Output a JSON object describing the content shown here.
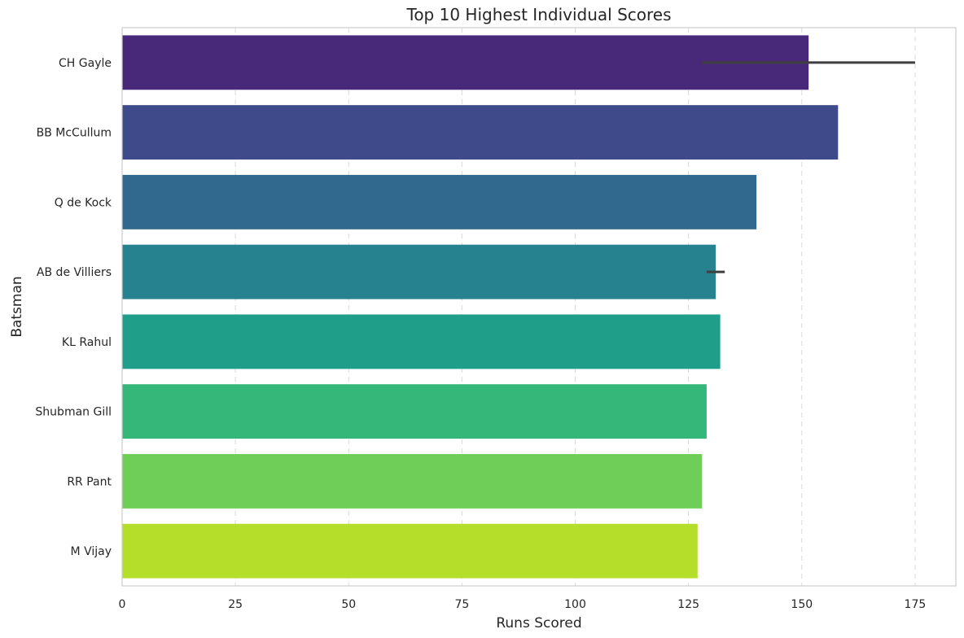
{
  "chart_data": {
    "type": "bar",
    "orientation": "horizontal",
    "title": "Top 10 Highest Individual Scores",
    "xlabel": "Runs Scored",
    "ylabel": "Batsman",
    "xlim": [
      0,
      184
    ],
    "xticks": [
      0,
      25,
      50,
      75,
      100,
      125,
      150,
      175
    ],
    "grid": "vertical dashed",
    "categories": [
      "CH Gayle",
      "BB McCullum",
      "Q de Kock",
      "AB de Villiers",
      "KL Rahul",
      "Shubman Gill",
      "RR Pant",
      "M Vijay"
    ],
    "values": [
      151.5,
      158,
      140,
      131,
      132,
      129,
      128,
      127
    ],
    "error_bars": [
      {
        "category": "CH Gayle",
        "low": 128,
        "high": 175
      },
      {
        "category": "AB de Villiers",
        "low": 129,
        "high": 133
      }
    ],
    "colors": [
      "#482878",
      "#3e4a89",
      "#31688e",
      "#26828e",
      "#1f9e89",
      "#35b779",
      "#6ece58",
      "#b5de2b"
    ]
  }
}
